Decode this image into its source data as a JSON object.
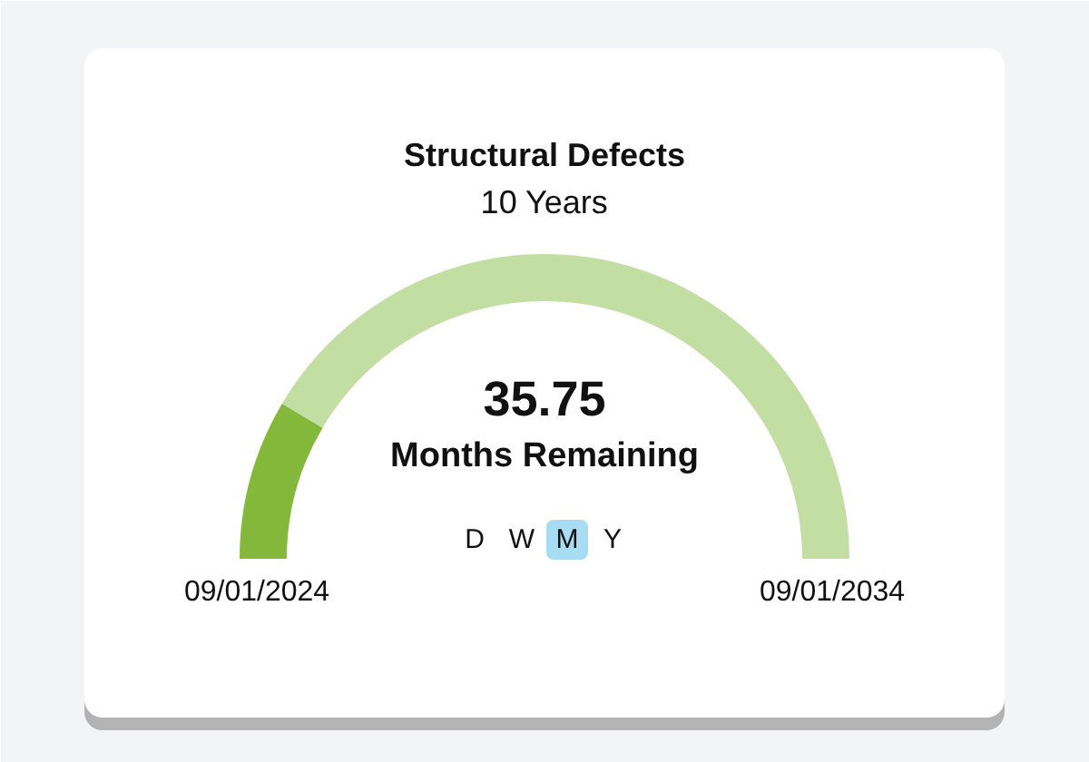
{
  "chart_data": {
    "type": "donut",
    "title": "Structural Defects",
    "subtitle": "10 Years",
    "categories": [
      null,
      null
    ],
    "values": [
      17,
      83
    ],
    "colors": [
      "#84b83a",
      "#c3dea3"
    ],
    "annotations": [
      "35.75",
      "Months Remaining",
      "D",
      "W",
      "M",
      "Y",
      "09/01/2024",
      "09/01/2034"
    ]
  }
}
